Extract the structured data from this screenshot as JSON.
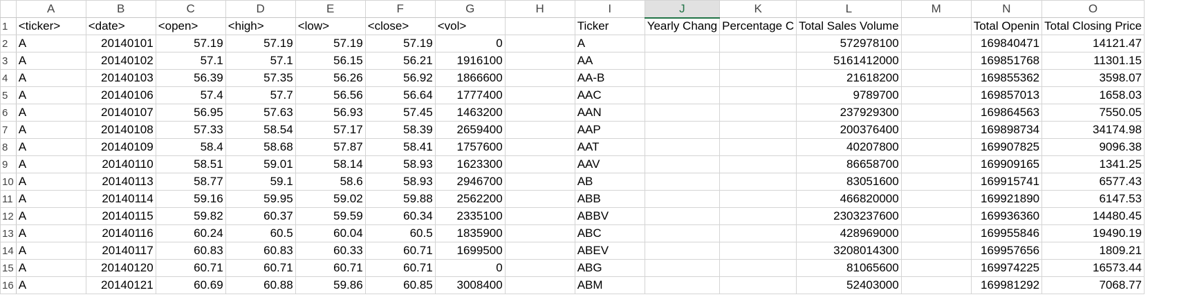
{
  "columns": [
    "A",
    "B",
    "C",
    "D",
    "E",
    "F",
    "G",
    "H",
    "I",
    "J",
    "K",
    "L",
    "M",
    "N",
    "O"
  ],
  "selected_column": "J",
  "header_row": {
    "row_num": "1",
    "cells": [
      "<ticker>",
      "<date>",
      "<open>",
      "<high>",
      "<low>",
      "<close>",
      "<vol>",
      "",
      "Ticker",
      "Yearly Chang",
      "Percentage C",
      "Total Sales Volume",
      "",
      "Total Openin",
      "Total Closing Price"
    ]
  },
  "rows": [
    {
      "row_num": "2",
      "cells": [
        "A",
        "20140101",
        "57.19",
        "57.19",
        "57.19",
        "57.19",
        "0",
        "",
        "A",
        "",
        "",
        "572978100",
        "",
        "169840471",
        "14121.47"
      ]
    },
    {
      "row_num": "3",
      "cells": [
        "A",
        "20140102",
        "57.1",
        "57.1",
        "56.15",
        "56.21",
        "1916100",
        "",
        "AA",
        "",
        "",
        "5161412000",
        "",
        "169851768",
        "11301.15"
      ]
    },
    {
      "row_num": "4",
      "cells": [
        "A",
        "20140103",
        "56.39",
        "57.35",
        "56.26",
        "56.92",
        "1866600",
        "",
        "AA-B",
        "",
        "",
        "21618200",
        "",
        "169855362",
        "3598.07"
      ]
    },
    {
      "row_num": "5",
      "cells": [
        "A",
        "20140106",
        "57.4",
        "57.7",
        "56.56",
        "56.64",
        "1777400",
        "",
        "AAC",
        "",
        "",
        "9789700",
        "",
        "169857013",
        "1658.03"
      ]
    },
    {
      "row_num": "6",
      "cells": [
        "A",
        "20140107",
        "56.95",
        "57.63",
        "56.93",
        "57.45",
        "1463200",
        "",
        "AAN",
        "",
        "",
        "237929300",
        "",
        "169864563",
        "7550.05"
      ]
    },
    {
      "row_num": "7",
      "cells": [
        "A",
        "20140108",
        "57.33",
        "58.54",
        "57.17",
        "58.39",
        "2659400",
        "",
        "AAP",
        "",
        "",
        "200376400",
        "",
        "169898734",
        "34174.98"
      ]
    },
    {
      "row_num": "8",
      "cells": [
        "A",
        "20140109",
        "58.4",
        "58.68",
        "57.87",
        "58.41",
        "1757600",
        "",
        "AAT",
        "",
        "",
        "40207800",
        "",
        "169907825",
        "9096.38"
      ]
    },
    {
      "row_num": "9",
      "cells": [
        "A",
        "20140110",
        "58.51",
        "59.01",
        "58.14",
        "58.93",
        "1623300",
        "",
        "AAV",
        "",
        "",
        "86658700",
        "",
        "169909165",
        "1341.25"
      ]
    },
    {
      "row_num": "10",
      "cells": [
        "A",
        "20140113",
        "58.77",
        "59.1",
        "58.6",
        "58.93",
        "2946700",
        "",
        "AB",
        "",
        "",
        "83051600",
        "",
        "169915741",
        "6577.43"
      ]
    },
    {
      "row_num": "11",
      "cells": [
        "A",
        "20140114",
        "59.16",
        "59.95",
        "59.02",
        "59.88",
        "2562200",
        "",
        "ABB",
        "",
        "",
        "466820000",
        "",
        "169921890",
        "6147.53"
      ]
    },
    {
      "row_num": "12",
      "cells": [
        "A",
        "20140115",
        "59.82",
        "60.37",
        "59.59",
        "60.34",
        "2335100",
        "",
        "ABBV",
        "",
        "",
        "2303237600",
        "",
        "169936360",
        "14480.45"
      ]
    },
    {
      "row_num": "13",
      "cells": [
        "A",
        "20140116",
        "60.24",
        "60.5",
        "60.04",
        "60.5",
        "1835900",
        "",
        "ABC",
        "",
        "",
        "428969000",
        "",
        "169955846",
        "19490.19"
      ]
    },
    {
      "row_num": "14",
      "cells": [
        "A",
        "20140117",
        "60.83",
        "60.83",
        "60.33",
        "60.71",
        "1699500",
        "",
        "ABEV",
        "",
        "",
        "3208014300",
        "",
        "169957656",
        "1809.21"
      ]
    },
    {
      "row_num": "15",
      "cells": [
        "A",
        "20140120",
        "60.71",
        "60.71",
        "60.71",
        "60.71",
        "0",
        "",
        "ABG",
        "",
        "",
        "81065600",
        "",
        "169974225",
        "16573.44"
      ]
    },
    {
      "row_num": "16",
      "cells": [
        "A",
        "20140121",
        "60.69",
        "60.88",
        "59.86",
        "60.85",
        "3008400",
        "",
        "ABM",
        "",
        "",
        "52403000",
        "",
        "169981292",
        "7068.77"
      ]
    }
  ]
}
